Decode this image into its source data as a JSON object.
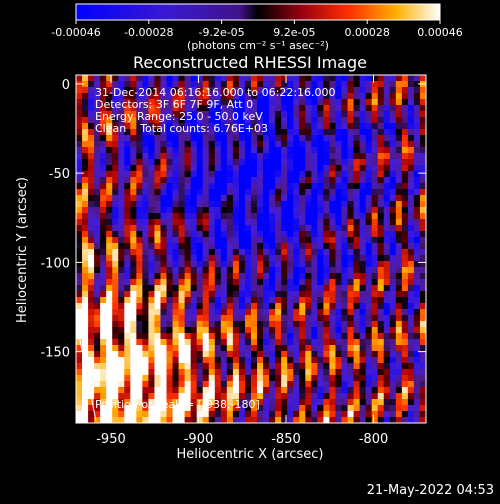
{
  "colorbar": {
    "ticks": [
      "-0.00046",
      "-0.00028",
      "-9.2e-05",
      "9.2e-05",
      "0.00028",
      "0.00046"
    ],
    "unit_label": "(photons cm⁻² s⁻¹ asec⁻²)",
    "range": [
      -0.00046,
      0.00046
    ]
  },
  "chart_data": {
    "type": "heatmap",
    "title": "Reconstructed RHESSI Image",
    "xlabel": "Heliocentric X (arcsec)",
    "ylabel": "Heliocentric Y (arcsec)",
    "xlim": [
      -970,
      -770
    ],
    "ylim": [
      -190,
      5
    ],
    "x_ticks": [
      "-950",
      "-900",
      "-850",
      "-800"
    ],
    "x_tick_values": [
      -950,
      -900,
      -850,
      -800
    ],
    "y_ticks": [
      "0",
      "-50",
      "-100",
      "-150"
    ],
    "y_tick_values": [
      0,
      -50,
      -100,
      -150
    ],
    "annotations": [
      "31-Dec-2014 06:16:16.000 to 06:22:16.000",
      "Detectors: 3F 6F 7F 9F, Att 0",
      "Energy Range: 25.0 - 50.0 keV",
      "Clean    Total counts: 6.76E+03"
    ],
    "peak_label": "Position of Peak = [-938,-180]",
    "peak": [
      -938,
      -180
    ],
    "colors": {
      "negative": "#0000ff",
      "zero": "#000000",
      "positive": "#ffffff"
    }
  },
  "footer": {
    "date": "21-May-2022 04:53"
  }
}
